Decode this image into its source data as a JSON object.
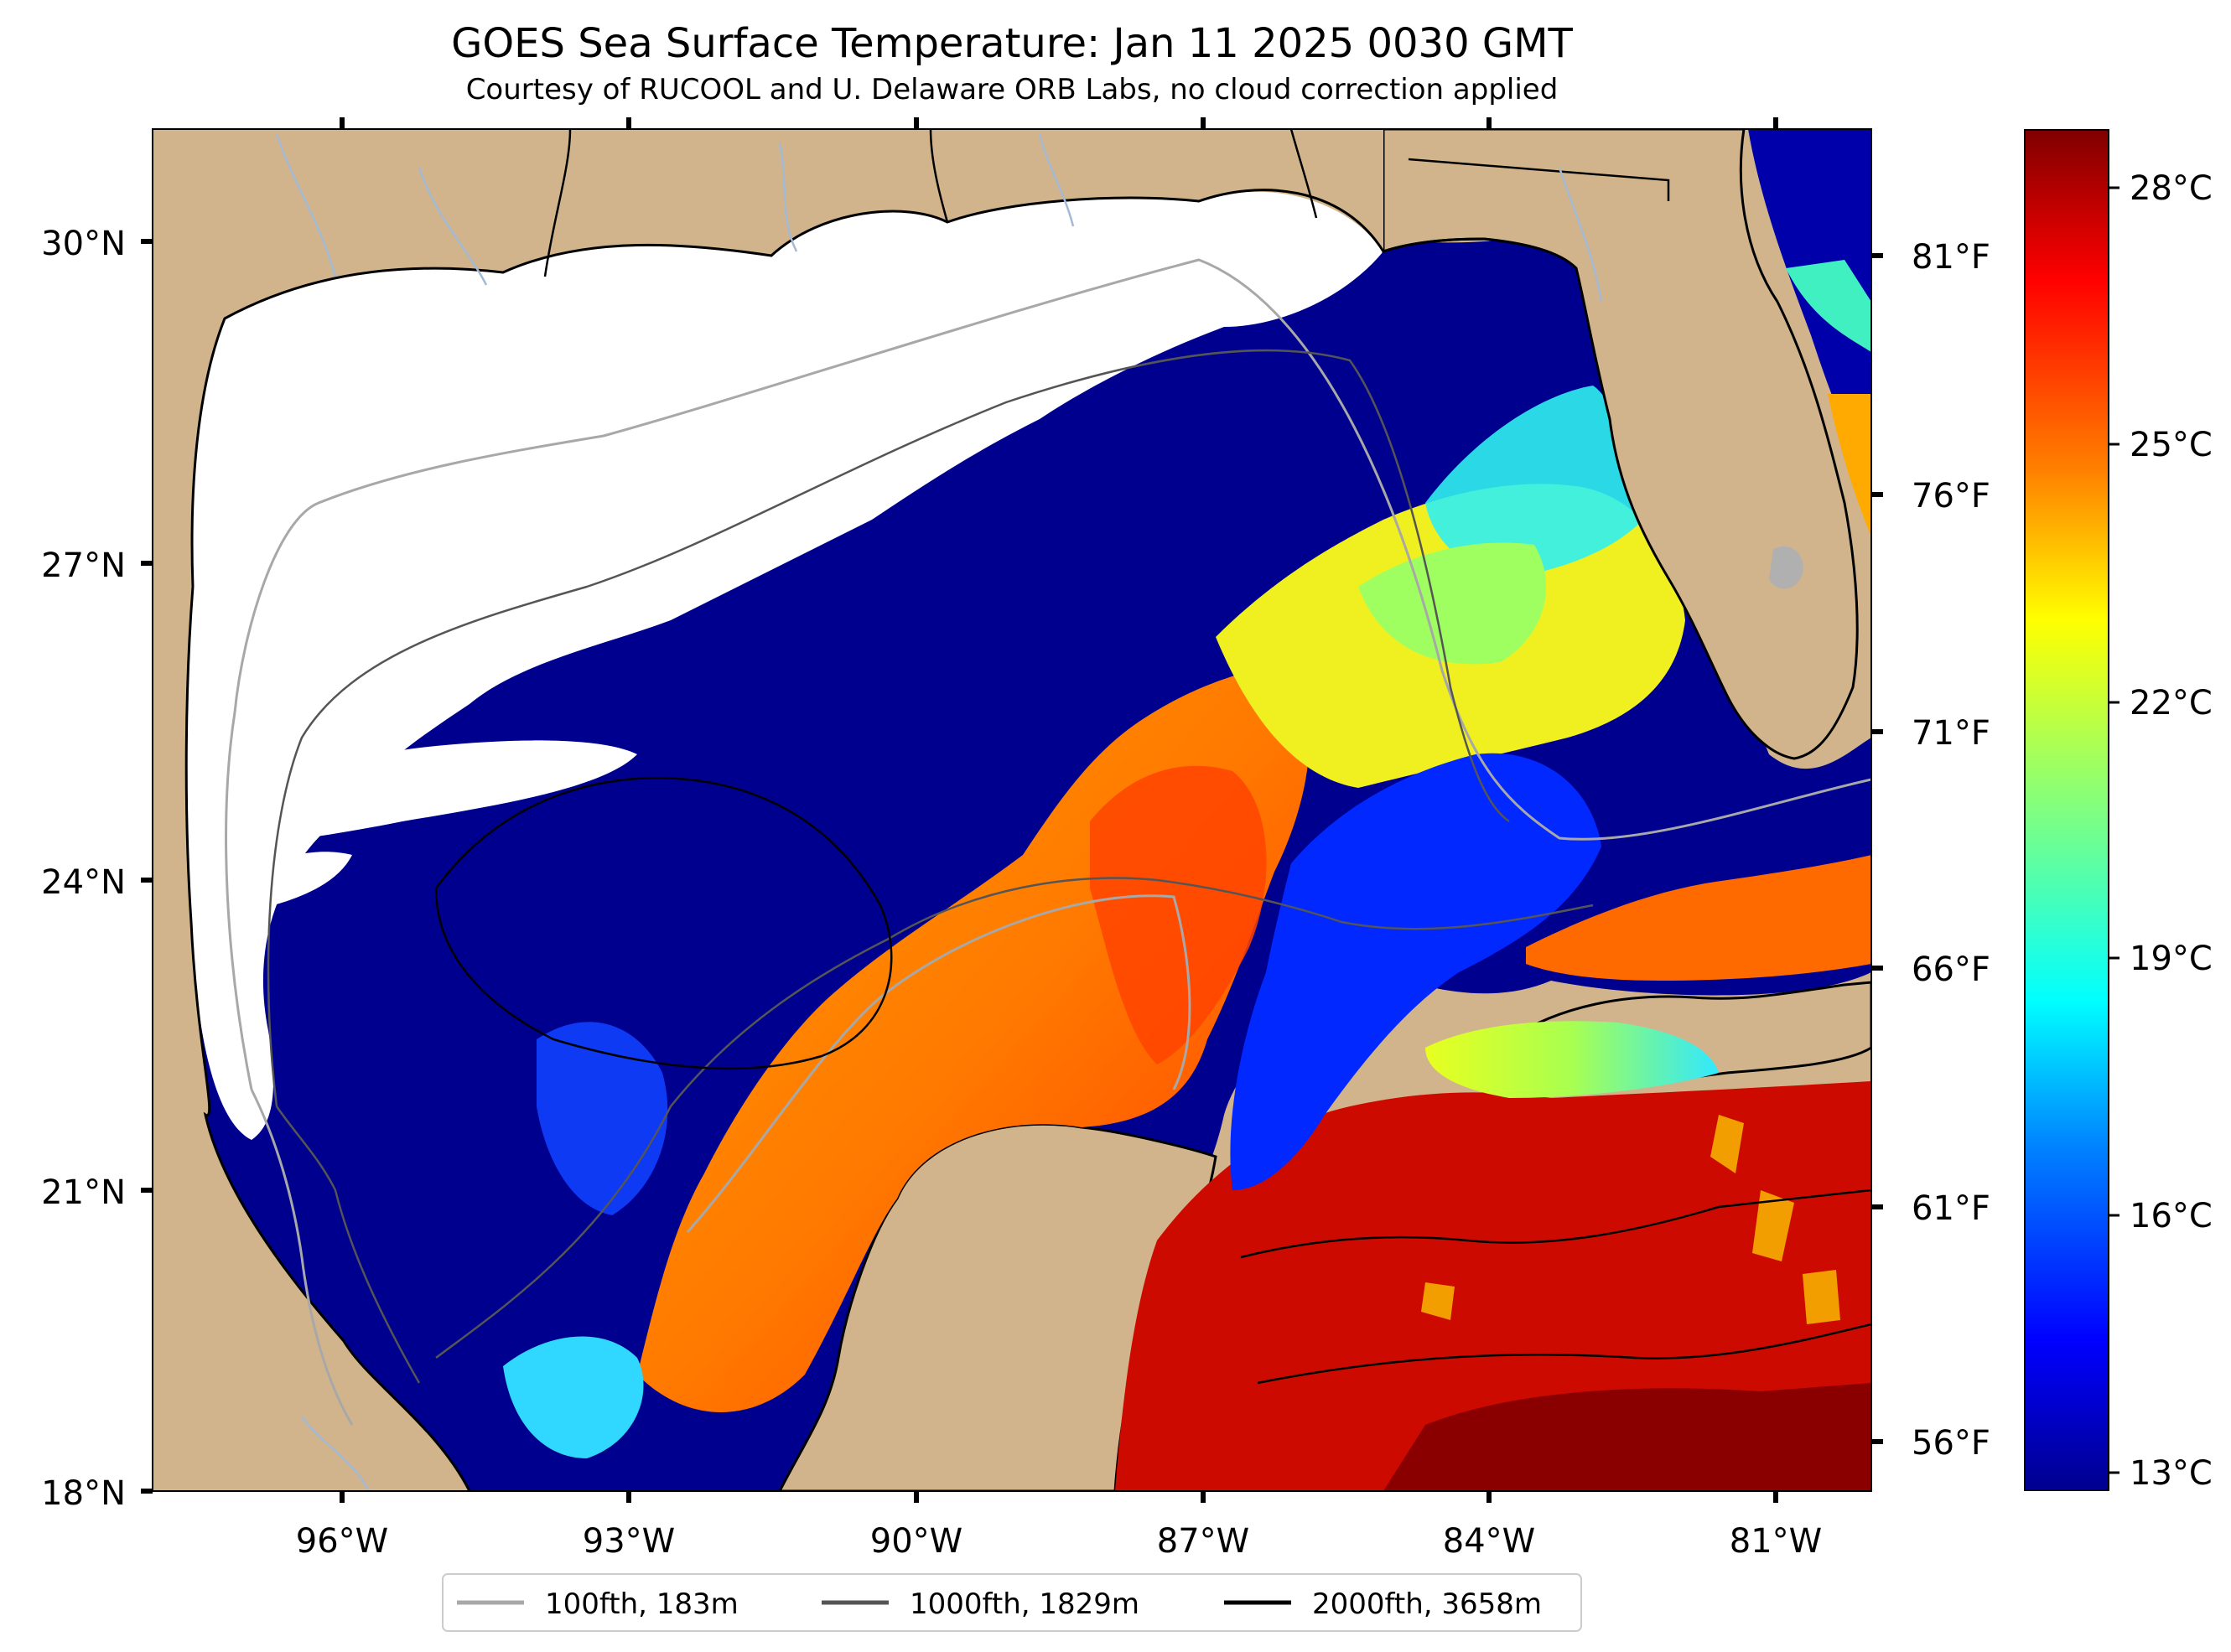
{
  "title": "GOES Sea Surface Temperature: Jan 11 2025 0030 GMT",
  "subtitle": "Courtesy of RUCOOL and U. Delaware ORB Labs, no cloud correction applied",
  "axes": {
    "lat_labels": [
      "30°N",
      "27°N",
      "24°N",
      "21°N",
      "18°N"
    ],
    "lon_labels": [
      "96°W",
      "93°W",
      "90°W",
      "87°W",
      "84°W",
      "81°W"
    ],
    "fahrenheit_labels": [
      "81°F",
      "76°F",
      "71°F",
      "66°F",
      "61°F",
      "56°F"
    ]
  },
  "colorbar": {
    "labels": [
      "28°C",
      "25°C",
      "22°C",
      "19°C",
      "16°C",
      "13°C"
    ],
    "colormap": [
      "#800000",
      "#ff0000",
      "#ff8000",
      "#ffff00",
      "#80ff80",
      "#00ffff",
      "#0080ff",
      "#0000ff",
      "#00008f"
    ]
  },
  "legend": [
    {
      "label": "100fth, 183m",
      "color": "#a8a8a8"
    },
    {
      "label": "1000fth, 1829m",
      "color": "#555555"
    },
    {
      "label": "2000fth, 3658m",
      "color": "#000000"
    }
  ],
  "colors": {
    "land": "#d2b48c",
    "cloud_mask": "#ffffff",
    "cold_water": "#00008f",
    "lakes_rivers": "#a3b9d4"
  }
}
